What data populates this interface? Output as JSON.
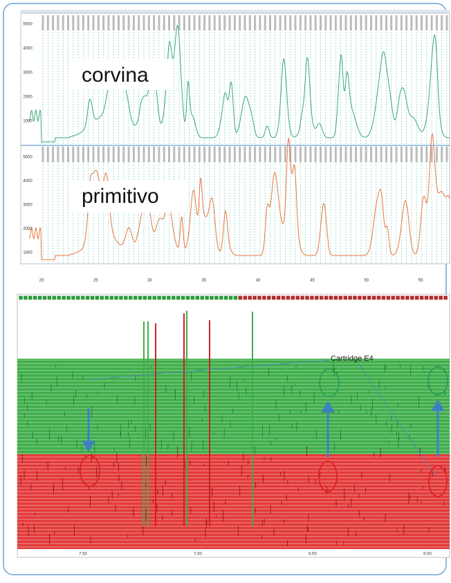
{
  "top_panel": {
    "upper_label": "corvina",
    "lower_label": "primitivo",
    "upper_yticks": [
      "5000",
      "4000",
      "3000",
      "2000",
      "1000"
    ],
    "lower_yticks": [
      "5000",
      "4000",
      "3000",
      "2000",
      "1000"
    ],
    "xticks": [
      "20",
      "25",
      "30",
      "35",
      "40",
      "45",
      "50",
      "55"
    ]
  },
  "bottom_panel": {
    "annotation": "Cartridge E4",
    "xticks": [
      "7.50",
      "7.00",
      "6.50",
      "6.00"
    ]
  }
}
